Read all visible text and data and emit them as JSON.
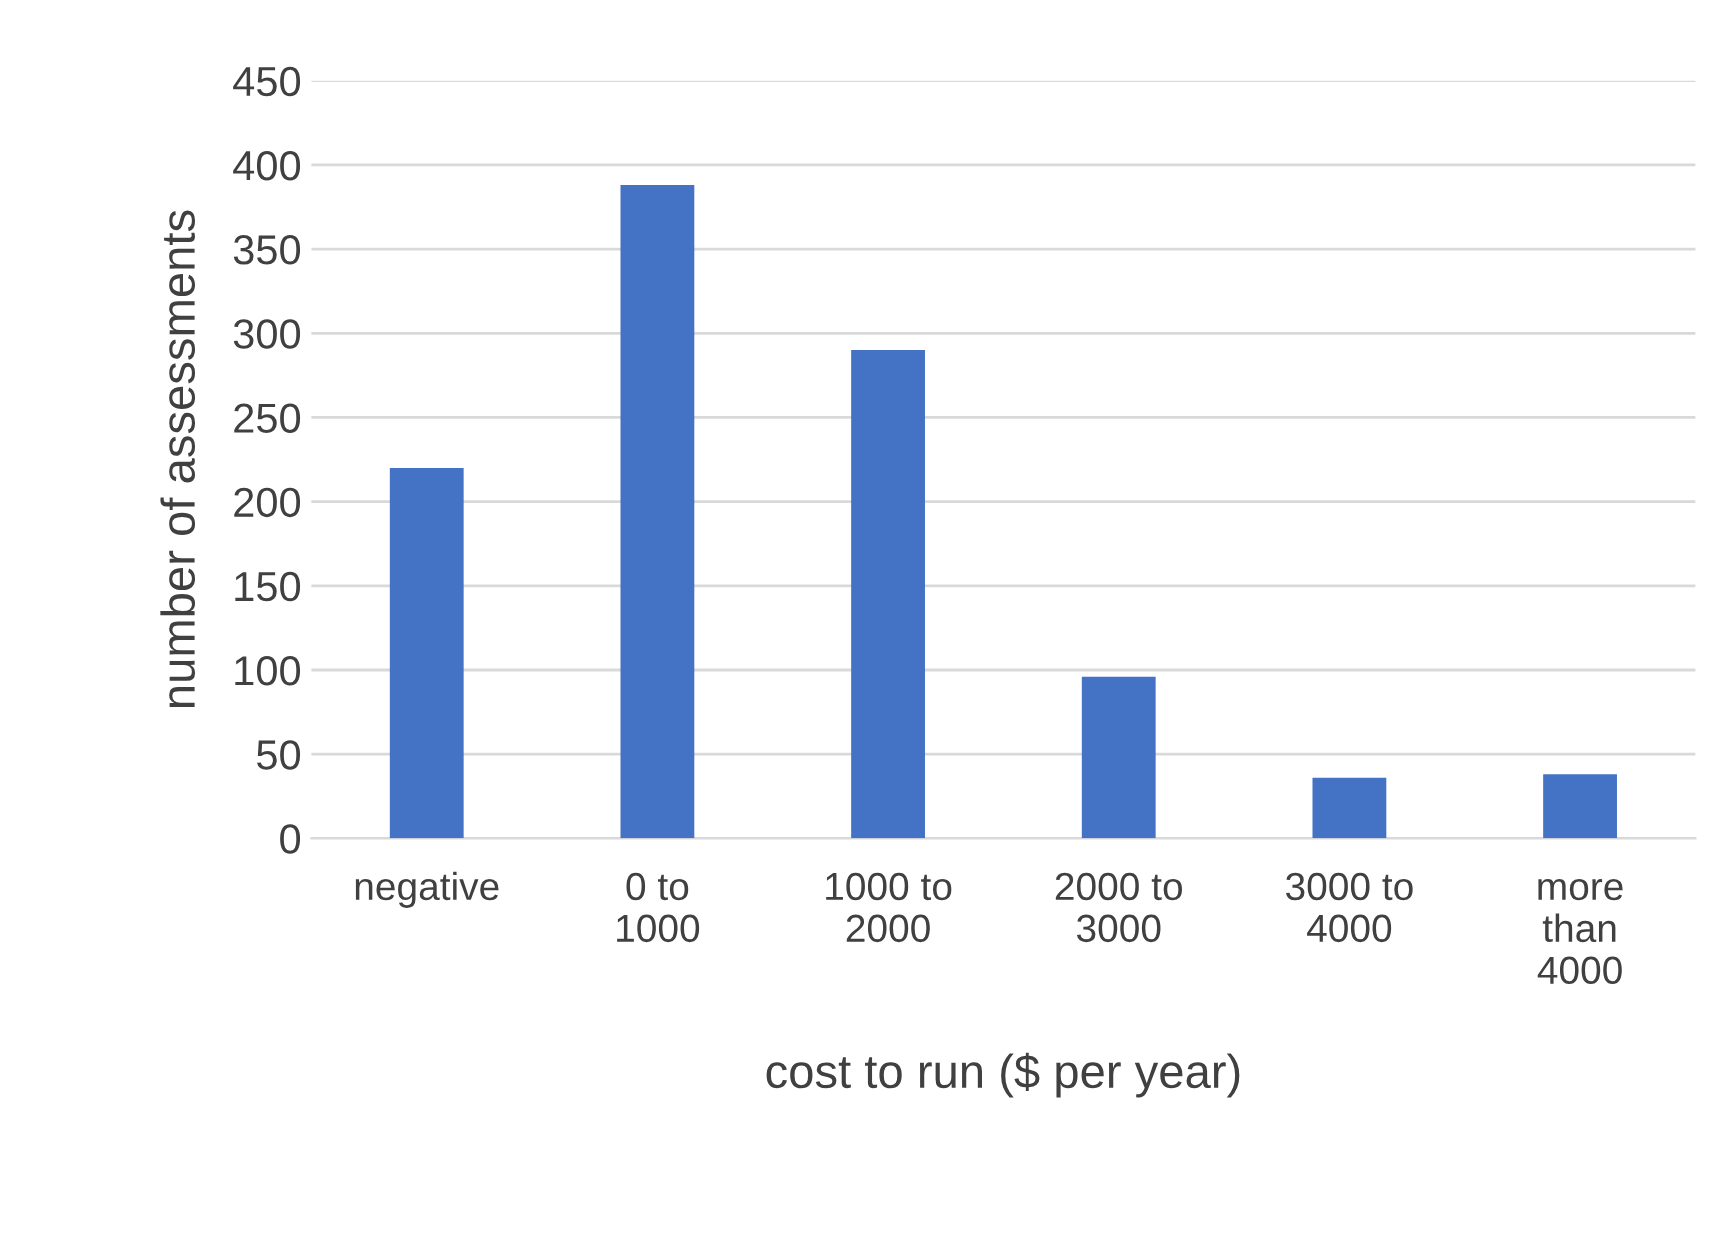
{
  "chart_data": {
    "type": "bar",
    "xlabel": "cost to run ($ per year)",
    "ylabel": "number of assessments",
    "categories": [
      "negative",
      "0 to 1000",
      "1000 to 2000",
      "2000 to 3000",
      "3000 to 4000",
      "more than 4000"
    ],
    "values": [
      220,
      388,
      290,
      96,
      36,
      38
    ],
    "color": "#4472c4",
    "ylim": [
      0,
      450
    ],
    "yticks": [
      0,
      50,
      100,
      150,
      200,
      250,
      300,
      350,
      400,
      450
    ],
    "grid": "y"
  }
}
